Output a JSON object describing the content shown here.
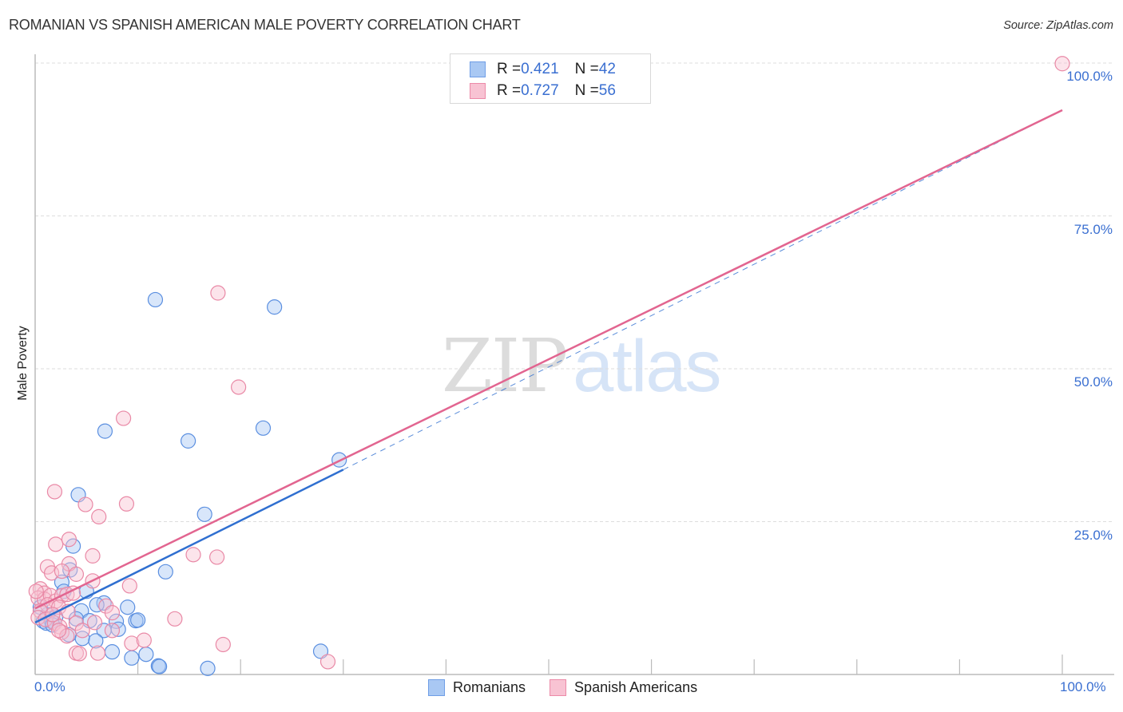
{
  "header": {
    "title": "ROMANIAN VS SPANISH AMERICAN MALE POVERTY CORRELATION CHART",
    "source": "Source: ZipAtlas.com"
  },
  "watermark": {
    "zip": "ZIP",
    "atlas": "atlas"
  },
  "axes": {
    "ylabel": "Male Poverty",
    "y_ticks": [
      "100.0%",
      "75.0%",
      "50.0%",
      "25.0%"
    ],
    "x_ticks": [
      "0.0%",
      "100.0%"
    ]
  },
  "legend_top": {
    "rows": [
      {
        "r_label": "R = ",
        "r_value": "0.421",
        "n_label": "N = ",
        "n_value": "42",
        "color": "#a9c8f3",
        "border": "#6f9ee6"
      },
      {
        "r_label": "R = ",
        "r_value": "0.727",
        "n_label": "N = ",
        "n_value": "56",
        "color": "#f8c3d3",
        "border": "#ec8aa8"
      }
    ]
  },
  "legend_bottom": {
    "items": [
      {
        "label": "Romanians",
        "color": "#a9c8f3",
        "border": "#6f9ee6"
      },
      {
        "label": "Spanish Americans",
        "color": "#f8c3d3",
        "border": "#ec8aa8"
      }
    ]
  },
  "colors": {
    "romanians_fill": "rgba(169,200,243,0.45)",
    "romanians_stroke": "#5b8fe0",
    "romanians_line": "#2f6fd0",
    "spanish_fill": "rgba(248,195,211,0.45)",
    "spanish_stroke": "#e989a6",
    "spanish_line": "#e26590",
    "tick_label": "#3a6fd1",
    "grid": "#dddddd",
    "axis": "#bbbbbb"
  },
  "chart_data": {
    "type": "scatter",
    "title": "ROMANIAN VS SPANISH AMERICAN MALE POVERTY CORRELATION CHART",
    "xlabel": "",
    "ylabel": "Male Poverty",
    "xlim": [
      0,
      100
    ],
    "ylim": [
      0,
      100
    ],
    "x_ticks": [
      0,
      100
    ],
    "y_ticks": [
      25,
      50,
      75,
      100
    ],
    "grid": "horizontal dashed at 25/50/75/100",
    "legend_position": "top-center and bottom-center",
    "series": [
      {
        "name": "Romanians",
        "R": 0.421,
        "N": 42,
        "trendline": {
          "x0": 0,
          "y0": 8.5,
          "x1": 30,
          "y1": 33.5,
          "extended_dashed_to": [
            100,
            92.3
          ]
        },
        "points": [
          [
            11.7,
            61.3
          ],
          [
            23.3,
            60.1
          ],
          [
            6.8,
            39.8
          ],
          [
            14.9,
            38.2
          ],
          [
            22.2,
            40.3
          ],
          [
            29.6,
            35.1
          ],
          [
            4.2,
            29.4
          ],
          [
            16.5,
            26.2
          ],
          [
            3.7,
            21.0
          ],
          [
            3.4,
            17.1
          ],
          [
            12.7,
            16.8
          ],
          [
            2.6,
            15.1
          ],
          [
            5.0,
            13.6
          ],
          [
            6.7,
            11.7
          ],
          [
            2.8,
            13.6
          ],
          [
            6.0,
            11.4
          ],
          [
            4.5,
            10.4
          ],
          [
            0.8,
            8.7
          ],
          [
            1.2,
            9.8
          ],
          [
            2.0,
            9.4
          ],
          [
            1.6,
            8.7
          ],
          [
            0.5,
            11.0
          ],
          [
            1.1,
            8.4
          ],
          [
            1.7,
            8.1
          ],
          [
            4.0,
            9.1
          ],
          [
            5.3,
            8.8
          ],
          [
            7.9,
            8.7
          ],
          [
            6.7,
            7.2
          ],
          [
            9.0,
            11.0
          ],
          [
            9.8,
            8.8
          ],
          [
            3.3,
            6.5
          ],
          [
            4.6,
            5.9
          ],
          [
            5.9,
            5.5
          ],
          [
            10.0,
            8.9
          ],
          [
            7.5,
            3.7
          ],
          [
            9.4,
            2.7
          ],
          [
            10.8,
            3.3
          ],
          [
            12.0,
            1.4
          ],
          [
            12.1,
            1.3
          ],
          [
            16.8,
            1.0
          ],
          [
            27.8,
            3.8
          ],
          [
            8.1,
            7.4
          ]
        ]
      },
      {
        "name": "Spanish Americans",
        "R": 0.727,
        "N": 56,
        "trendline": {
          "x0": 0,
          "y0": 10.8,
          "x1": 100,
          "y1": 92.3
        },
        "points": [
          [
            100.0,
            99.9
          ],
          [
            17.8,
            62.4
          ],
          [
            8.6,
            41.9
          ],
          [
            19.8,
            47.0
          ],
          [
            1.9,
            29.9
          ],
          [
            4.9,
            27.8
          ],
          [
            6.2,
            25.8
          ],
          [
            8.9,
            27.9
          ],
          [
            2.0,
            21.3
          ],
          [
            3.3,
            22.1
          ],
          [
            5.6,
            19.4
          ],
          [
            15.4,
            19.6
          ],
          [
            17.7,
            19.2
          ],
          [
            3.3,
            18.1
          ],
          [
            1.2,
            17.6
          ],
          [
            1.6,
            16.6
          ],
          [
            2.6,
            16.9
          ],
          [
            4.0,
            16.4
          ],
          [
            5.6,
            15.3
          ],
          [
            9.2,
            14.5
          ],
          [
            0.5,
            14.0
          ],
          [
            0.9,
            13.3
          ],
          [
            0.3,
            12.5
          ],
          [
            0.9,
            12.3
          ],
          [
            1.5,
            12.9
          ],
          [
            0.1,
            13.6
          ],
          [
            2.0,
            12.0
          ],
          [
            2.6,
            12.9
          ],
          [
            3.1,
            13.1
          ],
          [
            3.7,
            13.3
          ],
          [
            6.9,
            11.2
          ],
          [
            1.2,
            11.4
          ],
          [
            2.3,
            11.0
          ],
          [
            3.2,
            10.3
          ],
          [
            7.5,
            10.1
          ],
          [
            0.5,
            10.4
          ],
          [
            0.3,
            9.3
          ],
          [
            1.0,
            9.0
          ],
          [
            1.9,
            8.4
          ],
          [
            2.4,
            7.8
          ],
          [
            2.6,
            6.9
          ],
          [
            3.1,
            6.3
          ],
          [
            4.0,
            8.4
          ],
          [
            4.6,
            7.2
          ],
          [
            7.5,
            7.2
          ],
          [
            5.8,
            8.5
          ],
          [
            13.6,
            9.1
          ],
          [
            9.4,
            5.1
          ],
          [
            10.6,
            5.6
          ],
          [
            18.3,
            4.9
          ],
          [
            4.0,
            3.5
          ],
          [
            4.3,
            3.4
          ],
          [
            6.1,
            3.5
          ],
          [
            28.5,
            2.1
          ],
          [
            2.3,
            7.2
          ],
          [
            1.7,
            9.8
          ]
        ]
      }
    ]
  }
}
